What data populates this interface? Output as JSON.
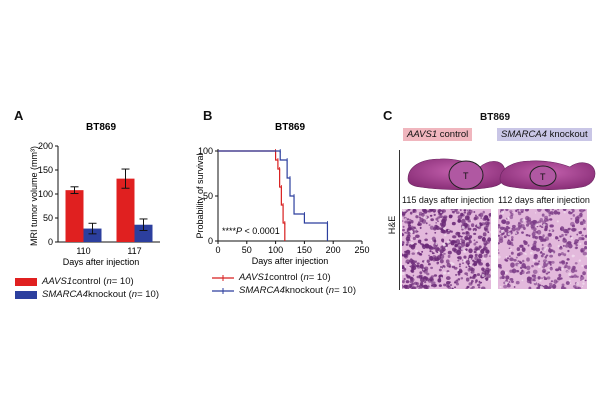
{
  "panels": {
    "A": {
      "letter": "A"
    },
    "B": {
      "letter": "B"
    },
    "C": {
      "letter": "C"
    }
  },
  "chart_data": [
    {
      "type": "bar",
      "panel": "A",
      "title": "BT869",
      "ylabel": "MRI tumor volume (mm³)",
      "xlabel": "Days after injection",
      "categories": [
        "110",
        "117"
      ],
      "ylim": [
        0,
        200
      ],
      "yticks": [
        "0",
        "50",
        "100",
        "150",
        "200"
      ],
      "series": [
        {
          "name_gene": "AAVS1",
          "name_rest": " control (",
          "n_label": "n",
          "n_rest": " = 10)",
          "color": "#e02020",
          "values": [
            108,
            132
          ],
          "errors": [
            7,
            20
          ]
        },
        {
          "name_gene": "SMARCA4",
          "name_rest": " knockout (",
          "n_label": "n",
          "n_rest": " = 10)",
          "color": "#2c3f9e",
          "values": [
            28,
            36
          ],
          "errors": [
            11,
            12
          ]
        }
      ]
    },
    {
      "type": "line",
      "panel": "B",
      "title": "BT869",
      "ylabel": "Probability of survival",
      "xlabel": "Days after injection",
      "xlim": [
        0,
        250
      ],
      "ylim": [
        0,
        100
      ],
      "xticks": [
        "0",
        "50",
        "100",
        "150",
        "200",
        "250"
      ],
      "yticks": [
        "0",
        "50",
        "100"
      ],
      "annotation_stars": "****",
      "annotation_p": "P",
      "annotation_rest": " < 0.0001",
      "series": [
        {
          "name_gene": "AAVS1",
          "name_rest": " control (",
          "n_label": "n",
          "n_rest": " = 10)",
          "color": "#d81e1e",
          "x": [
            0,
            100,
            100,
            104,
            104,
            107,
            107,
            110,
            110,
            113,
            113,
            116,
            116
          ],
          "y": [
            100,
            100,
            90,
            90,
            80,
            80,
            60,
            60,
            40,
            40,
            20,
            20,
            0
          ]
        },
        {
          "name_gene": "SMARCA4",
          "name_rest": " knockout (",
          "n_label": "n",
          "n_rest": " = 10)",
          "color": "#2c3f9e",
          "x": [
            0,
            108,
            108,
            120,
            120,
            125,
            125,
            132,
            132,
            150,
            150,
            190,
            190
          ],
          "y": [
            100,
            100,
            90,
            90,
            70,
            70,
            50,
            50,
            30,
            30,
            20,
            20,
            0
          ]
        }
      ]
    }
  ],
  "panelC": {
    "title": "BT869",
    "side_label": "H&E",
    "left_header_gene": "AAVS1",
    "left_header_rest": " control",
    "right_header_gene": "SMARCA4",
    "right_header_rest": " knockout",
    "left_caption": "115 days after injection",
    "right_caption": "112 days after injection",
    "tumor_label": "T",
    "left_header_color": "#f0b6be",
    "right_header_color": "#c9c6e6",
    "tissue_color": "#b84a9c"
  }
}
